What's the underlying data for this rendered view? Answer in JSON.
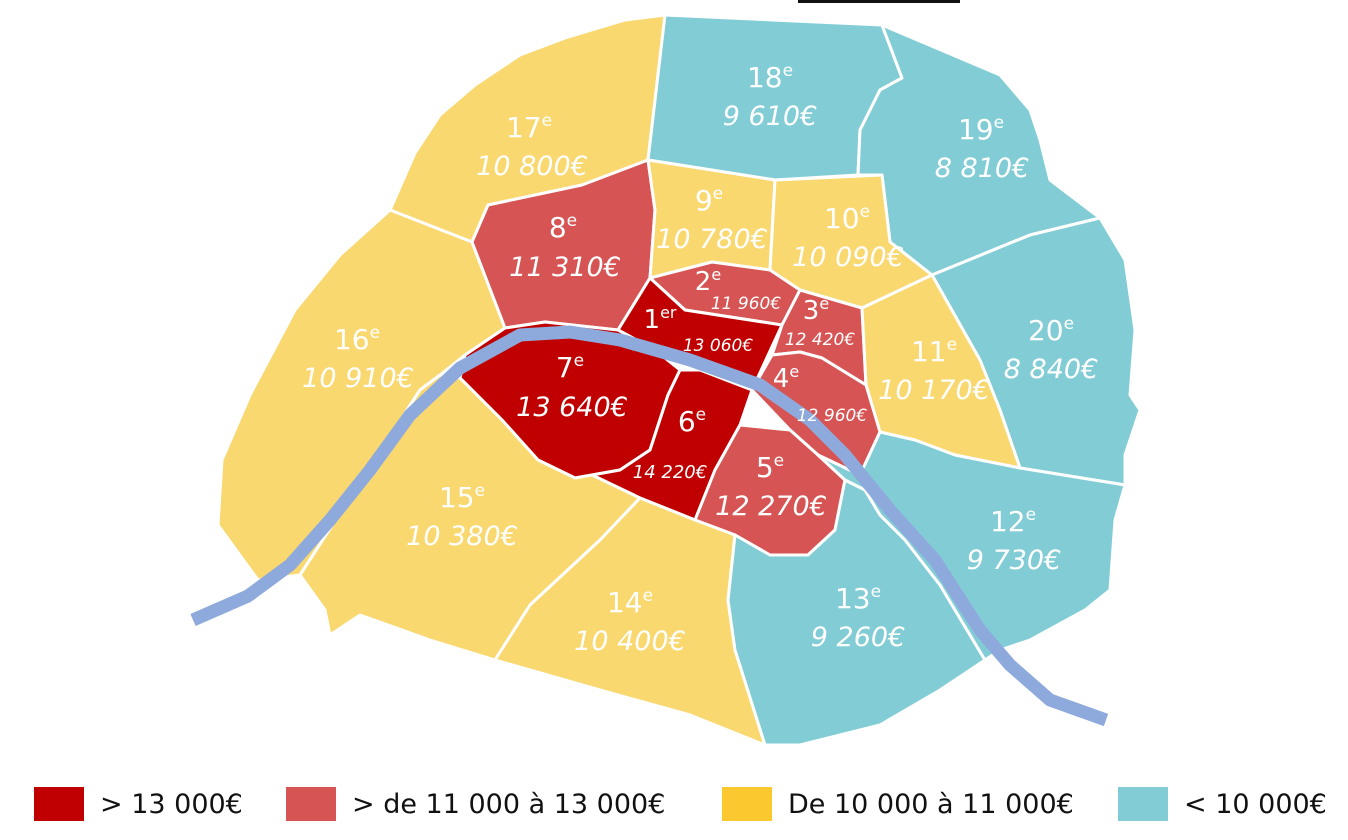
{
  "colors": {
    "very_high": "#c00000",
    "high": "#d75454",
    "mid": "#fad870",
    "low": "#82cdd5",
    "river": "#8eaadc",
    "border": "#ffffff",
    "legend_mid": "#fbc82f"
  },
  "districts": [
    {
      "id": "1",
      "num": "1",
      "sup": "er",
      "price": "13 060€",
      "tier": "very_high"
    },
    {
      "id": "2",
      "num": "2",
      "sup": "e",
      "price": "11 960€",
      "tier": "high"
    },
    {
      "id": "3",
      "num": "3",
      "sup": "e",
      "price": "12 420€",
      "tier": "high"
    },
    {
      "id": "4",
      "num": "4",
      "sup": "e",
      "price": "12 960€",
      "tier": "high"
    },
    {
      "id": "5",
      "num": "5",
      "sup": "e",
      "price": "12 270€",
      "tier": "high"
    },
    {
      "id": "6",
      "num": "6",
      "sup": "e",
      "price": "14 220€",
      "tier": "very_high"
    },
    {
      "id": "7",
      "num": "7",
      "sup": "e",
      "price": "13 640€",
      "tier": "very_high"
    },
    {
      "id": "8",
      "num": "8",
      "sup": "e",
      "price": "11 310€",
      "tier": "high"
    },
    {
      "id": "9",
      "num": "9",
      "sup": "e",
      "price": "10 780€",
      "tier": "mid"
    },
    {
      "id": "10",
      "num": "10",
      "sup": "e",
      "price": "10 090€",
      "tier": "mid"
    },
    {
      "id": "11",
      "num": "11",
      "sup": "e",
      "price": "10 170€",
      "tier": "mid"
    },
    {
      "id": "12",
      "num": "12",
      "sup": "e",
      "price": "9 730€",
      "tier": "low"
    },
    {
      "id": "13",
      "num": "13",
      "sup": "e",
      "price": "9 260€",
      "tier": "low"
    },
    {
      "id": "14",
      "num": "14",
      "sup": "e",
      "price": "10 400€",
      "tier": "mid"
    },
    {
      "id": "15",
      "num": "15",
      "sup": "e",
      "price": "10 380€",
      "tier": "mid"
    },
    {
      "id": "16",
      "num": "16",
      "sup": "e",
      "price": "10 910€",
      "tier": "mid"
    },
    {
      "id": "17",
      "num": "17",
      "sup": "e",
      "price": "10 800€",
      "tier": "mid"
    },
    {
      "id": "18",
      "num": "18",
      "sup": "e",
      "price": "9 610€",
      "tier": "low"
    },
    {
      "id": "19",
      "num": "19",
      "sup": "e",
      "price": "8 810€",
      "tier": "low"
    },
    {
      "id": "20",
      "num": "20",
      "sup": "e",
      "price": "8 840€",
      "tier": "low"
    }
  ],
  "legend": [
    {
      "tier": "very_high",
      "label": "> 13 000€"
    },
    {
      "tier": "high",
      "label": "> de 11 000 à 13 000€"
    },
    {
      "tier": "mid",
      "label": "De 10 000 à 11 000€"
    },
    {
      "tier": "low",
      "label": "< 10 000€"
    }
  ]
}
